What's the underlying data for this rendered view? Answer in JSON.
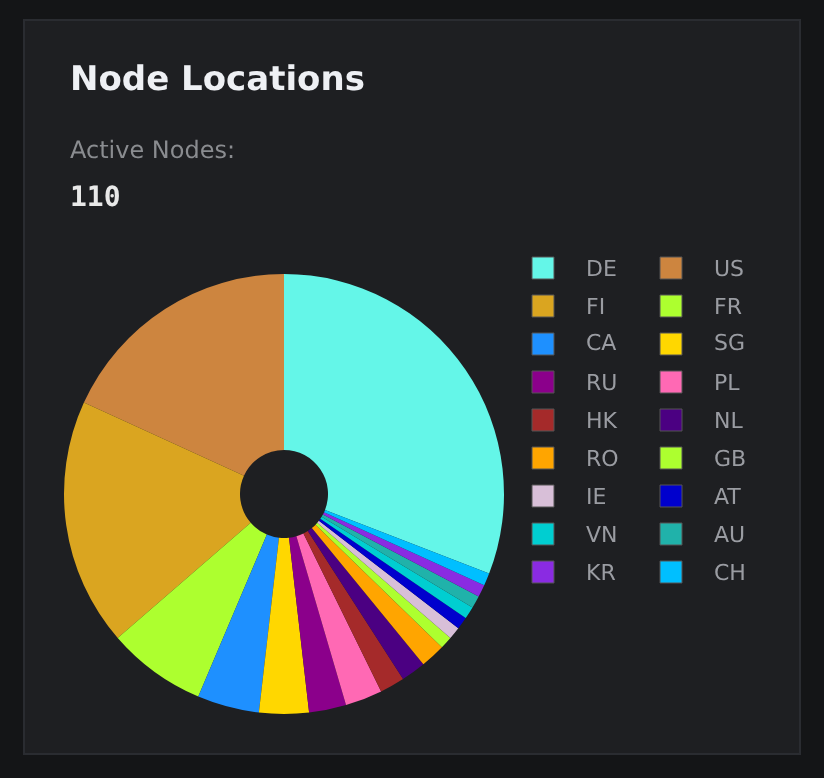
{
  "chart_data": {
    "type": "donut",
    "title": "Node Locations",
    "annotations": [
      "Active Nodes:",
      "110"
    ],
    "categories": [
      "DE",
      "US",
      "FI",
      "FR",
      "CA",
      "SG",
      "RU",
      "PL",
      "HK",
      "NL",
      "RO",
      "GB",
      "IE",
      "AT",
      "VN",
      "AU",
      "KR",
      "CH"
    ],
    "values": [
      30.89,
      18.18,
      18.18,
      7.27,
      4.55,
      3.64,
      2.73,
      2.73,
      1.82,
      1.82,
      1.82,
      0.91,
      0.91,
      0.91,
      0.91,
      0.91,
      0.91,
      0.91
    ],
    "colors": [
      "#64f6e8",
      "#cd853f",
      "#daa520",
      "#adff2f",
      "#1e90ff",
      "#ffd700",
      "#8b008b",
      "#ff69b4",
      "#a52a2a",
      "#4b0082",
      "#ffa500",
      "#adff2f",
      "#d8bfd8",
      "#0000cd",
      "#00ced1",
      "#20b2aa",
      "#8a2be2",
      "#00bfff"
    ],
    "legend": "right"
  }
}
